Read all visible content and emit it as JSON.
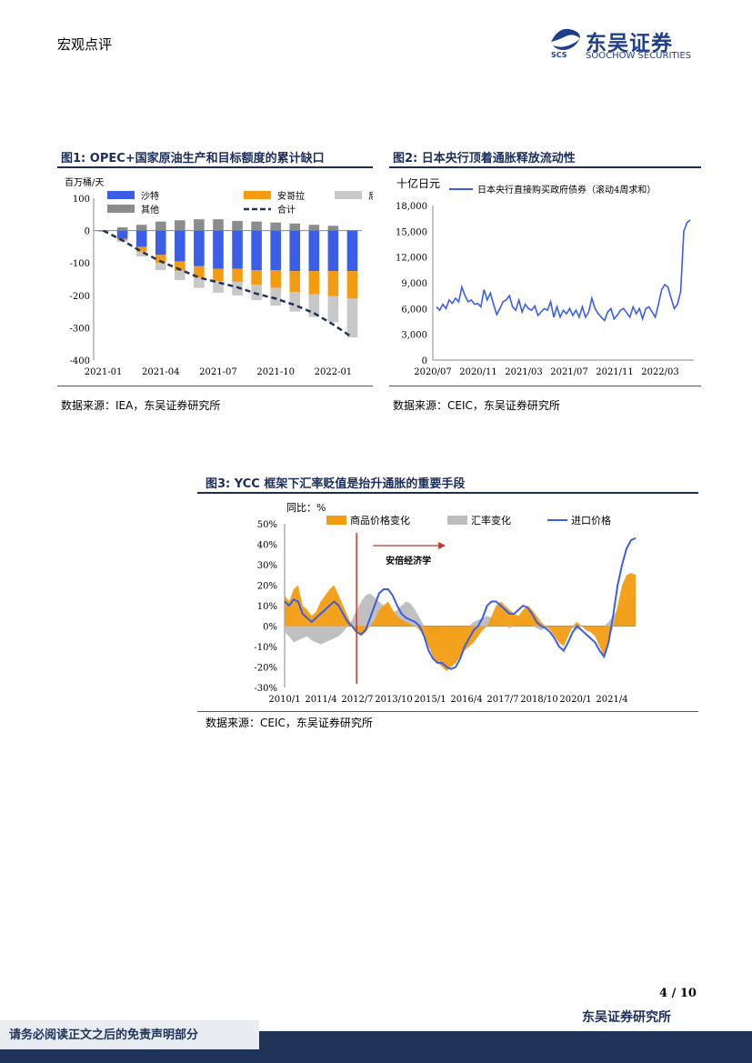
{
  "header": {
    "section": "宏观点评",
    "logo_cn": "东吴证券",
    "logo_en": "SOOCHOW SECURITIES",
    "logo_mark": "SCS"
  },
  "fig1": {
    "title": "图1: OPEC+国家原油生产和目标额度的累计缺口",
    "source": "数据来源：IEA，东吴证券研究所",
    "colors": {
      "沙特": "#3a5ee6",
      "安哥拉": "#f39c12",
      "尼日利亚": "#c8c8c8",
      "其他": "#8c8c8c",
      "合计": "#1f3458"
    },
    "chart_data": {
      "type": "bar",
      "stacked": true,
      "ylabel": "百万桶/天",
      "ylim": [
        -400,
        100
      ],
      "yticks": [
        100,
        0,
        -100,
        -200,
        -300,
        -400
      ],
      "xticks": [
        "2021-01",
        "2021-04",
        "2021-07",
        "2021-10",
        "2022-01"
      ],
      "categories": [
        "2021-01",
        "2021-02",
        "2021-03",
        "2021-04",
        "2021-05",
        "2021-06",
        "2021-07",
        "2021-08",
        "2021-09",
        "2021-10",
        "2021-11",
        "2021-12",
        "2022-01",
        "2022-02"
      ],
      "legend": [
        "沙特",
        "安哥拉",
        "尼日利亚",
        "其他",
        "合计"
      ],
      "series": [
        {
          "name": "沙特",
          "values": [
            -2,
            -25,
            -50,
            -75,
            -95,
            -110,
            -118,
            -118,
            -122,
            -122,
            -125,
            -125,
            -125,
            -125
          ]
        },
        {
          "name": "安哥拉",
          "values": [
            0,
            -5,
            -15,
            -25,
            -30,
            -35,
            -38,
            -40,
            -45,
            -55,
            -65,
            -72,
            -78,
            -85
          ]
        },
        {
          "name": "尼日利亚",
          "values": [
            -2,
            -5,
            -15,
            -22,
            -28,
            -32,
            -36,
            -42,
            -48,
            -55,
            -60,
            -70,
            -80,
            -120
          ]
        },
        {
          "name": "其他",
          "values": [
            0,
            10,
            18,
            28,
            32,
            35,
            35,
            30,
            28,
            25,
            22,
            18,
            15,
            0
          ]
        },
        {
          "name": "合计",
          "type": "line",
          "values": [
            0,
            -30,
            -65,
            -95,
            -120,
            -145,
            -160,
            -175,
            -195,
            -210,
            -230,
            -255,
            -290,
            -330
          ]
        }
      ]
    }
  },
  "fig2": {
    "title": "图2: 日本央行顶着通胀释放流动性",
    "source": "数据来源：CEIC，东吴证券研究所",
    "color": "#3a5ee6",
    "chart_data": {
      "type": "line",
      "ylabel": "十亿日元",
      "ylim": [
        0,
        18000
      ],
      "yticks": [
        "18,000",
        "15,000",
        "12,000",
        "9,000",
        "6,000",
        "3,000",
        "0"
      ],
      "xticks": [
        "2020/07",
        "2020/11",
        "2021/03",
        "2021/07",
        "2021/11",
        "2022/03"
      ],
      "series": [
        {
          "name": "日本央行直接购买政府债券（滚动4周求和）",
          "values": [
            6200,
            5800,
            6500,
            6000,
            7000,
            6600,
            7200,
            6800,
            8500,
            7500,
            6800,
            7000,
            6500,
            6600,
            6200,
            8200,
            7000,
            7800,
            6500,
            5300,
            6000,
            6800,
            7000,
            7500,
            6200,
            5800,
            7000,
            5600,
            6500,
            6000,
            5800,
            6300,
            5200,
            5600,
            6000,
            5800,
            6800,
            5000,
            6200,
            5000,
            5800,
            5400,
            6000,
            5200,
            5800,
            5000,
            6200,
            5000,
            5600,
            7200,
            6000,
            5400,
            5000,
            4600,
            5600,
            6000,
            4800,
            5200,
            5800,
            6000,
            5500,
            5000,
            6200,
            5400,
            6000,
            4800,
            6000,
            6200,
            5600,
            5000,
            6500,
            8200,
            8800,
            8500,
            7200,
            6000,
            6500,
            8000,
            15000,
            16000,
            16300
          ]
        }
      ]
    }
  },
  "fig3": {
    "title": "图3: YCC 框架下汇率贬值是抬升通胀的重要手段",
    "source": "数据来源：CEIC，东吴证券研究所",
    "annotation": "安倍经济学",
    "colors": {
      "商品价格变化": "#f39c12",
      "汇率变化": "#bdbdbd",
      "进口价格": "#3a5ee6",
      "marker": "#c0392b"
    },
    "chart_data": {
      "type": "area",
      "ylabel": "同比：%",
      "ylim": [
        -30,
        50
      ],
      "yticks": [
        "50%",
        "40%",
        "30%",
        "20%",
        "10%",
        "0%",
        "-10%",
        "-20%",
        "-30%"
      ],
      "xticks": [
        "2010/1",
        "2011/4",
        "2012/7",
        "2013/10",
        "2015/1",
        "2016/4",
        "2017/7",
        "2018/10",
        "2020/1",
        "2021/4"
      ],
      "legend": [
        "商品价格变化",
        "汇率变化",
        "进口价格"
      ],
      "vline_at": "2012/10",
      "series": [
        {
          "name": "商品价格变化",
          "type": "area",
          "values": [
            15,
            12,
            18,
            20,
            10,
            8,
            5,
            7,
            12,
            15,
            18,
            20,
            15,
            10,
            5,
            0,
            -3,
            -5,
            -3,
            0,
            3,
            8,
            10,
            12,
            8,
            5,
            3,
            2,
            1,
            0,
            -2,
            -5,
            -10,
            -15,
            -18,
            -20,
            -22,
            -20,
            -18,
            -15,
            -12,
            -10,
            -8,
            -5,
            -2,
            0,
            5,
            10,
            12,
            10,
            8,
            6,
            5,
            8,
            10,
            8,
            5,
            2,
            0,
            -2,
            -5,
            -8,
            -10,
            -5,
            0,
            2,
            0,
            -2,
            -3,
            -5,
            -10,
            -15,
            -8,
            0,
            10,
            20,
            25,
            26,
            25
          ]
        },
        {
          "name": "汇率变化",
          "type": "area",
          "values": [
            -3,
            -5,
            -8,
            -7,
            -6,
            -5,
            -7,
            -8,
            -9,
            -8,
            -7,
            -6,
            -5,
            -3,
            0,
            3,
            8,
            12,
            15,
            16,
            14,
            12,
            10,
            8,
            6,
            8,
            10,
            12,
            11,
            8,
            4,
            0,
            -3,
            -5,
            -4,
            -2,
            0,
            -1,
            -3,
            -4,
            -2,
            0,
            2,
            3,
            4,
            5,
            4,
            3,
            1,
            0,
            -1,
            0,
            1,
            2,
            1,
            0,
            -1,
            -2,
            -1,
            0,
            -1,
            -1,
            0,
            0,
            -1,
            -2,
            0,
            0,
            0,
            0,
            0,
            0,
            2,
            5,
            8,
            10,
            12,
            14,
            15
          ]
        },
        {
          "name": "进口价格",
          "type": "line",
          "values": [
            12,
            10,
            13,
            12,
            6,
            4,
            2,
            4,
            6,
            8,
            10,
            12,
            10,
            6,
            2,
            0,
            -3,
            -4,
            -2,
            4,
            10,
            16,
            18,
            18,
            15,
            10,
            6,
            4,
            3,
            2,
            0,
            -5,
            -12,
            -16,
            -18,
            -18,
            -20,
            -21,
            -20,
            -16,
            -10,
            -6,
            -2,
            0,
            4,
            10,
            12,
            12,
            10,
            8,
            6,
            6,
            8,
            10,
            9,
            6,
            2,
            0,
            -1,
            -3,
            -6,
            -10,
            -12,
            -8,
            -3,
            0,
            -2,
            -4,
            -6,
            -8,
            -12,
            -15,
            -8,
            5,
            20,
            30,
            38,
            42,
            43
          ]
        }
      ]
    }
  },
  "footer": {
    "page": "4 / 10",
    "org": "东吴证券研究所",
    "disclaimer": "请务必阅读正文之后的免责声明部分"
  }
}
